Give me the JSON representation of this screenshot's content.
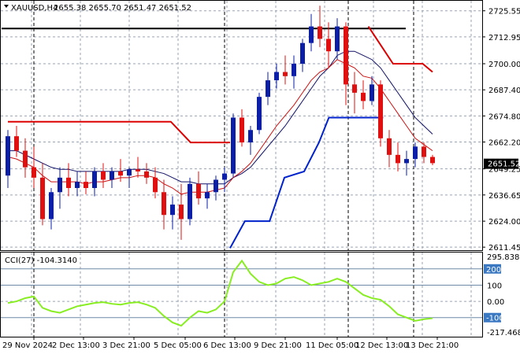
{
  "header": {
    "menu_arrow": "triangle-down-icon",
    "symbol": "XAUUSD,H4",
    "ohlc": "2655.38 2655.70 2651.47 2651.52"
  },
  "price_axis": {
    "ticks": [
      "2725.55",
      "2712.95",
      "2700.00",
      "2687.40",
      "2674.80",
      "2662.20",
      "2649.25",
      "2636.65",
      "2624.00",
      "2611.45"
    ],
    "current_price": "2651.52"
  },
  "cci_panel": {
    "label": "CCI(27) -104.3140",
    "ticks": [
      "295.8383",
      "200",
      "100",
      "0.00",
      "-100",
      "-217.4689"
    ]
  },
  "time_axis": {
    "labels": [
      "29 Nov 2024",
      "2 Dec 13:00",
      "3 Dec 21:00",
      "5 Dec 05:00",
      "6 Dec 13:00",
      "9 Dec 21:00",
      "11 Dec 05:00",
      "12 Dec 13:00",
      "13 Dec 21:00"
    ]
  },
  "colors": {
    "bull": "#0a1ea8",
    "bear": "#e01010",
    "ema_fast": "#cc1111",
    "ema_slow": "#101066",
    "stop_red": "#dd0000",
    "stop_blue": "#0022cc",
    "cci": "#88ee22",
    "resistance": "#000000"
  },
  "chart_data": {
    "type": "candlestick",
    "title": "XAUUSD,H4",
    "ylim": [
      2611.45,
      2730
    ],
    "x": [
      "29 Nov 2024",
      "2 Dec 13:00",
      "3 Dec 21:00",
      "5 Dec 05:00",
      "6 Dec 13:00",
      "9 Dec 21:00",
      "11 Dec 05:00",
      "12 Dec 13:00",
      "13 Dec 21:00"
    ],
    "candles": [
      [
        2646,
        2668,
        2640,
        2665
      ],
      [
        2665,
        2670,
        2655,
        2658
      ],
      [
        2658,
        2664,
        2645,
        2650
      ],
      [
        2650,
        2660,
        2640,
        2645
      ],
      [
        2645,
        2652,
        2622,
        2625
      ],
      [
        2625,
        2640,
        2620,
        2638
      ],
      [
        2638,
        2650,
        2630,
        2645
      ],
      [
        2645,
        2652,
        2636,
        2640
      ],
      [
        2640,
        2648,
        2636,
        2643
      ],
      [
        2643,
        2648,
        2637,
        2640
      ],
      [
        2640,
        2650,
        2636,
        2648
      ],
      [
        2648,
        2652,
        2640,
        2644
      ],
      [
        2644,
        2650,
        2640,
        2648
      ],
      [
        2648,
        2654,
        2643,
        2646
      ],
      [
        2646,
        2650,
        2640,
        2649
      ],
      [
        2649,
        2655,
        2645,
        2648
      ],
      [
        2648,
        2652,
        2642,
        2645
      ],
      [
        2645,
        2650,
        2635,
        2638
      ],
      [
        2638,
        2644,
        2620,
        2627
      ],
      [
        2627,
        2636,
        2620,
        2632
      ],
      [
        2632,
        2642,
        2615,
        2625
      ],
      [
        2625,
        2645,
        2622,
        2642
      ],
      [
        2642,
        2648,
        2632,
        2635
      ],
      [
        2635,
        2642,
        2630,
        2638
      ],
      [
        2638,
        2646,
        2634,
        2644
      ],
      [
        2644,
        2650,
        2638,
        2647
      ],
      [
        2647,
        2676,
        2645,
        2674
      ],
      [
        2674,
        2678,
        2660,
        2662
      ],
      [
        2662,
        2670,
        2656,
        2668
      ],
      [
        2668,
        2686,
        2666,
        2684
      ],
      [
        2684,
        2696,
        2680,
        2692
      ],
      [
        2692,
        2700,
        2688,
        2696
      ],
      [
        2696,
        2704,
        2690,
        2694
      ],
      [
        2694,
        2704,
        2688,
        2700
      ],
      [
        2700,
        2712,
        2696,
        2710
      ],
      [
        2710,
        2724,
        2706,
        2718
      ],
      [
        2718,
        2728,
        2708,
        2712
      ],
      [
        2712,
        2720,
        2698,
        2706
      ],
      [
        2706,
        2722,
        2702,
        2718
      ],
      [
        2718,
        2720,
        2680,
        2690
      ],
      [
        2690,
        2696,
        2676,
        2686
      ],
      [
        2686,
        2692,
        2678,
        2682
      ],
      [
        2682,
        2694,
        2680,
        2690
      ],
      [
        2690,
        2692,
        2660,
        2664
      ],
      [
        2664,
        2668,
        2650,
        2656
      ],
      [
        2656,
        2662,
        2648,
        2652
      ],
      [
        2652,
        2658,
        2646,
        2654
      ],
      [
        2654,
        2662,
        2650,
        2660
      ],
      [
        2660,
        2662,
        2652,
        2655
      ],
      [
        2655,
        2656,
        2651,
        2652
      ]
    ],
    "ema_fast": [
      2655,
      2654,
      2652,
      2650,
      2646,
      2643,
      2643,
      2643,
      2643,
      2642,
      2643,
      2643,
      2644,
      2645,
      2645,
      2646,
      2646,
      2645,
      2642,
      2640,
      2637,
      2638,
      2638,
      2638,
      2639,
      2640,
      2645,
      2648,
      2652,
      2658,
      2664,
      2670,
      2675,
      2680,
      2686,
      2692,
      2696,
      2698,
      2702,
      2700,
      2698,
      2694,
      2693,
      2688,
      2682,
      2676,
      2670,
      2664,
      2661,
      2658
    ],
    "ema_slow": [
      2658,
      2658,
      2656,
      2654,
      2652,
      2650,
      2649,
      2649,
      2648,
      2648,
      2648,
      2648,
      2648,
      2648,
      2649,
      2649,
      2649,
      2648,
      2647,
      2645,
      2643,
      2643,
      2642,
      2642,
      2642,
      2642,
      2645,
      2647,
      2650,
      2655,
      2660,
      2665,
      2670,
      2676,
      2682,
      2688,
      2694,
      2698,
      2704,
      2706,
      2706,
      2704,
      2702,
      2698,
      2692,
      2686,
      2680,
      2674,
      2670,
      2666
    ],
    "stop_red_segments": [
      [
        [
          0,
          2672
        ],
        [
          33,
          2672
        ],
        [
          37,
          2662
        ],
        [
          45,
          2662
        ]
      ],
      [
        [
          73,
          2718
        ],
        [
          78,
          2700
        ],
        [
          84,
          2700
        ],
        [
          86,
          2696
        ]
      ]
    ],
    "stop_blue_segments": [
      [
        [
          45,
          2611
        ],
        [
          48,
          2624
        ],
        [
          53,
          2624
        ],
        [
          56,
          2645
        ],
        [
          60,
          2648
        ],
        [
          63,
          2662
        ],
        [
          65,
          2674
        ],
        [
          76,
          2674
        ]
      ]
    ],
    "resistance": 2717,
    "cci": [
      -10,
      0,
      20,
      30,
      -40,
      -60,
      -70,
      -50,
      -30,
      -20,
      -10,
      -5,
      -15,
      -20,
      -10,
      -5,
      -20,
      -40,
      -90,
      -130,
      -150,
      -100,
      -60,
      -70,
      -50,
      0,
      180,
      250,
      170,
      120,
      100,
      110,
      140,
      150,
      130,
      100,
      110,
      120,
      140,
      120,
      80,
      40,
      20,
      10,
      -30,
      -80,
      -100,
      -120,
      -110,
      -104
    ],
    "cci_ylim": [
      -217.4689,
      295.8383
    ]
  }
}
